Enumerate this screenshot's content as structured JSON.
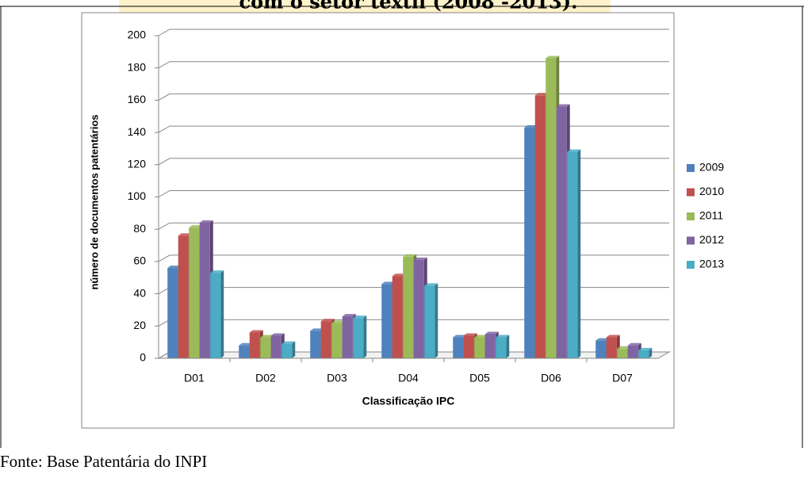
{
  "header": {
    "title": "com o setor têxtil (2008 -2013)."
  },
  "chart_data": {
    "type": "bar",
    "x_label": "Classificação IPC",
    "y_label": "número de documentos patentários",
    "categories": [
      "D01",
      "D02",
      "D03",
      "D04",
      "D05",
      "D06",
      "D07"
    ],
    "series": [
      {
        "name": "2009",
        "color": "#4f81bd",
        "values": [
          56,
          8,
          17,
          46,
          13,
          143,
          11
        ]
      },
      {
        "name": "2010",
        "color": "#c0504d",
        "values": [
          76,
          16,
          23,
          51,
          14,
          163,
          13
        ]
      },
      {
        "name": "2011",
        "color": "#9bbb59",
        "values": [
          81,
          13,
          22,
          63,
          13,
          186,
          6
        ]
      },
      {
        "name": "2012",
        "color": "#8064a2",
        "values": [
          84,
          14,
          26,
          61,
          15,
          156,
          8
        ]
      },
      {
        "name": "2013",
        "color": "#4bacc6",
        "values": [
          53,
          9,
          25,
          45,
          13,
          128,
          5
        ]
      }
    ],
    "ylim": [
      0,
      200
    ],
    "yticks": [
      0,
      20,
      40,
      60,
      80,
      100,
      120,
      140,
      160,
      180,
      200
    ],
    "grid": true,
    "legend": "right"
  },
  "footer": {
    "source": "Fonte: Base Patentária do INPI"
  }
}
